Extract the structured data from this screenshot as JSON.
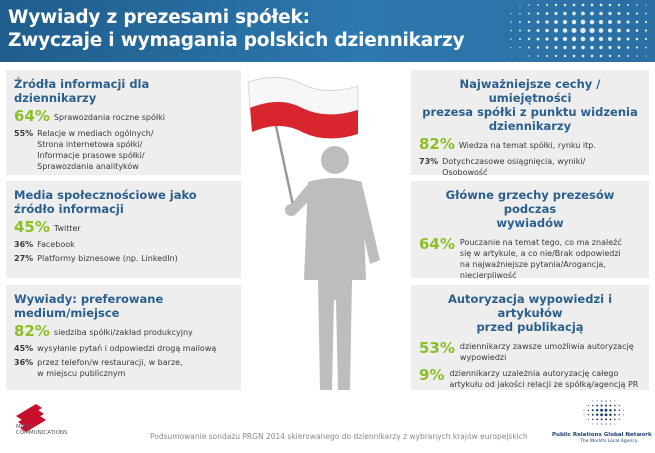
{
  "header": {
    "title": "Wywiady z prezesami spółek:\nZwyczaje i wymagania polskich dziennikarzy"
  },
  "colors": {
    "header_blue": "#2d78ae",
    "panel_title_blue": "#2a5f8e",
    "percent_green": "#8cbf26",
    "panel_bg": "#eeeeee",
    "flag_red": "#d9262e"
  },
  "panels": {
    "sources": {
      "title": "Źródła informacji dla dziennikarzy",
      "items": [
        {
          "pct": "64%",
          "text": "Sprawozdania roczne spółki"
        },
        {
          "pct": "55%",
          "text": "Relacje w mediach ogólnych/\nStrona internetowa spółki/\nInformacje prasowe spółki/\nSprawozdania analityków"
        }
      ]
    },
    "social": {
      "title": "Media społecznościowe jako\nźródło informacji",
      "items": [
        {
          "pct": "45%",
          "text": "Twitter"
        },
        {
          "pct": "36%",
          "text": "Facebook"
        },
        {
          "pct": "27%",
          "text": "Platformy biznesowe (np. LinkedIn)"
        }
      ]
    },
    "interviews": {
      "title": "Wywiady: preferowane\nmedium/miejsce",
      "items": [
        {
          "pct": "82%",
          "text": "siedziba spółki/zakład produkcyjny"
        },
        {
          "pct": "45%",
          "text": "wysyłanie pytań i odpowiedzi drogą mailową"
        },
        {
          "pct": "36%",
          "text": "przez telefon/w restauracji, w barze,\nw miejscu publicznym"
        }
      ]
    },
    "traits": {
      "title": "Najważniejsze cechy / umiejętności\nprezesa spółki z punktu widzenia\ndziennikarzy",
      "items": [
        {
          "pct": "82%",
          "text": "Wiedza na temat spółki, rynku itp."
        },
        {
          "pct": "73%",
          "text": "Dotychczasowe osiągnięcia, wyniki/\nOsobowość"
        }
      ]
    },
    "sins": {
      "title": "Główne grzechy prezesów podczas\nwywiadów",
      "items": [
        {
          "pct": "64%",
          "text": "Pouczanie na temat tego, co ma znaleźć\nsię w artykule, a co nie/Brak odpowiedzi\nna najważniejsze pytania/Arogancja,\nniecierpliwość"
        }
      ]
    },
    "authorization": {
      "title": "Autoryzacja wypowiedzi i artykułów\nprzed publikacją",
      "items": [
        {
          "pct": "53%",
          "text": "dziennikarzy zawsze umożliwia autoryzację\nwypowiedzi"
        },
        {
          "pct": "9%",
          "text": "dziennikarzy uzależnia autoryzację całego\nartykułu od jakości relacji ze spółką/agencją PR"
        }
      ]
    }
  },
  "footer": {
    "note": "Podsumowanie sondażu PRGN 2014 skierowanego do dziennikarzy z wybranych krajów europejskich",
    "logo_left_text": "MULTI\nCOMMUNICATIONS",
    "logo_right_name": "Public Relations Global Network",
    "logo_right_tag": "The World's Local Agency"
  },
  "icons": [
    "decorative-dots-icon",
    "person-with-flag-icon",
    "multi-communications-logo",
    "prgn-globe-logo"
  ]
}
